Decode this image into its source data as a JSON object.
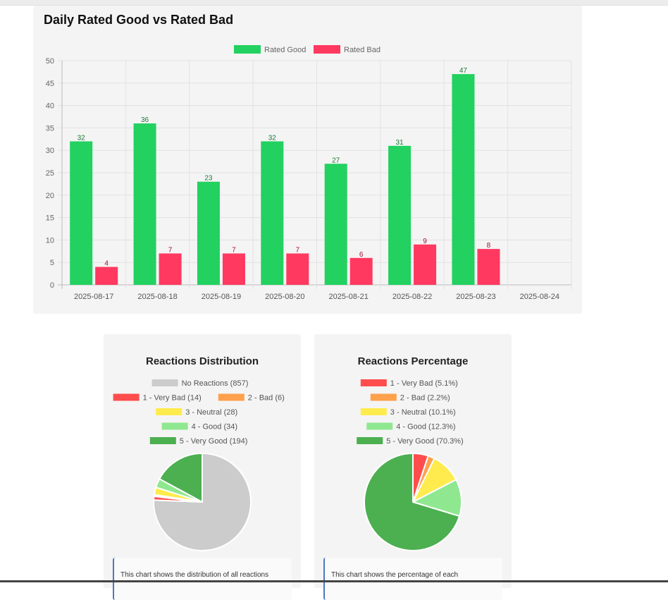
{
  "bar_chart": {
    "title": "Daily Rated Good vs Rated Bad",
    "colors": {
      "good": "#22d160",
      "bad": "#ff3960",
      "good_label": "#1d7a34",
      "bad_label": "#a01030"
    }
  },
  "distribution": {
    "title": "Reactions Distribution",
    "note": "This chart shows the distribution of all reactions"
  },
  "percentage": {
    "title": "Reactions Percentage",
    "note": "This chart shows the percentage of each"
  },
  "chart_data": [
    {
      "type": "bar",
      "title": "Daily Rated Good vs Rated Bad",
      "categories": [
        "2025-08-17",
        "2025-08-18",
        "2025-08-19",
        "2025-08-20",
        "2025-08-21",
        "2025-08-22",
        "2025-08-23",
        "2025-08-24"
      ],
      "series": [
        {
          "name": "Rated Good",
          "values": [
            32,
            36,
            23,
            32,
            27,
            31,
            47,
            null
          ]
        },
        {
          "name": "Rated Bad",
          "values": [
            4,
            7,
            7,
            7,
            6,
            9,
            8,
            null
          ]
        }
      ],
      "yticks": [
        "0",
        "5",
        "10",
        "15",
        "20",
        "25",
        "30",
        "35",
        "40",
        "45",
        "50"
      ],
      "ylim": [
        0,
        50
      ],
      "legend": "top",
      "grid": true
    },
    {
      "type": "pie",
      "title": "Reactions Distribution",
      "legend": "top",
      "slices": [
        {
          "label": "No Reactions (857)",
          "value": 857,
          "color": "#cccccc"
        },
        {
          "label": "1 - Very Bad (14)",
          "value": 14,
          "color": "#ff4d4d"
        },
        {
          "label": "2 - Bad (6)",
          "value": 6,
          "color": "#ffa04d"
        },
        {
          "label": "3 - Neutral (28)",
          "value": 28,
          "color": "#ffeb4d"
        },
        {
          "label": "4 - Good (34)",
          "value": 34,
          "color": "#8fe88f"
        },
        {
          "label": "5 - Very Good (194)",
          "value": 194,
          "color": "#4caf50"
        }
      ]
    },
    {
      "type": "pie",
      "title": "Reactions Percentage",
      "legend": "top",
      "slices": [
        {
          "label": "1 - Very Bad (5.1%)",
          "value": 5.1,
          "color": "#ff4d4d"
        },
        {
          "label": "2 - Bad (2.2%)",
          "value": 2.2,
          "color": "#ffa04d"
        },
        {
          "label": "3 - Neutral (10.1%)",
          "value": 10.1,
          "color": "#ffeb4d"
        },
        {
          "label": "4 - Good (12.3%)",
          "value": 12.3,
          "color": "#8fe88f"
        },
        {
          "label": "5 - Very Good (70.3%)",
          "value": 70.3,
          "color": "#4caf50"
        }
      ]
    }
  ]
}
